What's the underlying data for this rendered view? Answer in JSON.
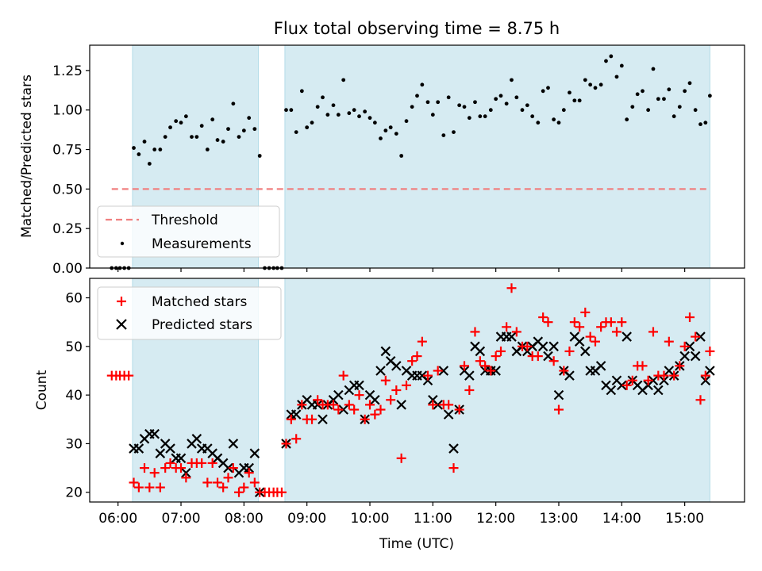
{
  "title": "Flux total observing time = 8.75 h",
  "colors": {
    "shade": "#add8e6",
    "threshold": "#f08080",
    "matched": "#ff0000",
    "predicted": "#000000",
    "measurement": "#000000"
  },
  "chart_data": [
    {
      "type": "scatter",
      "ylabel": "Matched/Predicted stars",
      "xlim": [
        5.55,
        15.95
      ],
      "ylim": [
        0,
        1.41
      ],
      "yticks": [
        0.0,
        0.25,
        0.5,
        0.75,
        1.0,
        1.25
      ],
      "ytick_labels": [
        "0.00",
        "0.25",
        "0.50",
        "0.75",
        "1.00",
        "1.25"
      ],
      "shaded_x_ranges": [
        [
          6.23,
          8.23
        ],
        [
          8.65,
          15.4
        ]
      ],
      "legend": {
        "placement": "lower left",
        "entries": [
          "Threshold",
          "Measurements"
        ]
      },
      "series": [
        {
          "name": "Threshold",
          "style": "dashed-line",
          "x": [
            5.9,
            15.4
          ],
          "y": [
            0.5,
            0.5
          ]
        },
        {
          "name": "Measurements",
          "style": "dot",
          "x": [
            5.9,
            5.97,
            6.03,
            6.1,
            6.17,
            6.25,
            6.33,
            6.42,
            6.5,
            6.58,
            6.67,
            6.75,
            6.83,
            6.92,
            7.0,
            7.08,
            7.17,
            7.25,
            7.33,
            7.42,
            7.5,
            7.58,
            7.67,
            7.75,
            7.83,
            7.92,
            8.0,
            8.08,
            8.17,
            8.25,
            8.33,
            8.4,
            8.47,
            8.53,
            8.6,
            8.67,
            8.75,
            8.83,
            8.92,
            9.0,
            9.08,
            9.17,
            9.25,
            9.33,
            9.42,
            9.5,
            9.58,
            9.67,
            9.75,
            9.83,
            9.92,
            10.0,
            10.08,
            10.17,
            10.25,
            10.33,
            10.42,
            10.5,
            10.58,
            10.67,
            10.75,
            10.83,
            10.92,
            11.0,
            11.08,
            11.17,
            11.25,
            11.33,
            11.42,
            11.5,
            11.58,
            11.67,
            11.75,
            11.83,
            11.92,
            12.0,
            12.08,
            12.17,
            12.25,
            12.33,
            12.42,
            12.5,
            12.58,
            12.67,
            12.75,
            12.83,
            12.92,
            13.0,
            13.08,
            13.17,
            13.25,
            13.33,
            13.42,
            13.5,
            13.58,
            13.67,
            13.75,
            13.83,
            13.92,
            14.0,
            14.08,
            14.17,
            14.25,
            14.33,
            14.42,
            14.5,
            14.58,
            14.67,
            14.75,
            14.83,
            14.92,
            15.0,
            15.08,
            15.17,
            15.25,
            15.33,
            15.4
          ],
          "y": [
            0.0,
            0.0,
            0.0,
            0.0,
            0.0,
            0.76,
            0.72,
            0.8,
            0.66,
            0.75,
            0.75,
            0.83,
            0.89,
            0.93,
            0.92,
            0.96,
            0.83,
            0.83,
            0.9,
            0.75,
            0.94,
            0.81,
            0.8,
            0.88,
            1.04,
            0.83,
            0.87,
            0.95,
            0.88,
            0.71,
            0.0,
            0.0,
            0.0,
            0.0,
            0.0,
            1.0,
            1.0,
            0.86,
            1.12,
            0.89,
            0.92,
            1.02,
            1.08,
            0.97,
            1.03,
            0.97,
            1.19,
            0.98,
            1.0,
            0.96,
            0.99,
            0.95,
            0.92,
            0.82,
            0.87,
            0.89,
            0.85,
            0.71,
            0.93,
            1.02,
            1.09,
            1.16,
            1.05,
            0.97,
            1.05,
            0.84,
            1.08,
            0.86,
            1.03,
            1.02,
            0.95,
            1.05,
            0.96,
            0.96,
            1.0,
            1.07,
            1.09,
            1.04,
            1.19,
            1.08,
            1.0,
            1.03,
            0.96,
            0.92,
            1.12,
            1.14,
            0.94,
            0.92,
            1.0,
            1.11,
            1.06,
            1.06,
            1.19,
            1.16,
            1.14,
            1.16,
            1.31,
            1.34,
            1.21,
            1.28,
            0.94,
            1.02,
            1.1,
            1.12,
            1.0,
            1.26,
            1.07,
            1.07,
            1.13,
            0.96,
            1.02,
            1.12,
            1.17,
            1.0,
            0.91,
            0.92,
            1.09
          ]
        }
      ]
    },
    {
      "type": "scatter",
      "ylabel": "Count",
      "xlabel": "Time (UTC)",
      "xlim": [
        5.55,
        15.95
      ],
      "ylim": [
        18,
        64
      ],
      "yticks": [
        20,
        30,
        40,
        50,
        60
      ],
      "ytick_labels": [
        "20",
        "30",
        "40",
        "50",
        "60"
      ],
      "xticks": [
        6,
        7,
        8,
        9,
        10,
        11,
        12,
        13,
        14,
        15
      ],
      "xtick_labels": [
        "06:00",
        "07:00",
        "08:00",
        "09:00",
        "10:00",
        "11:00",
        "12:00",
        "13:00",
        "14:00",
        "15:00"
      ],
      "shaded_x_ranges": [
        [
          6.23,
          8.23
        ],
        [
          8.65,
          15.4
        ]
      ],
      "legend": {
        "placement": "upper left",
        "entries": [
          "Matched stars",
          "Predicted stars"
        ]
      },
      "series": [
        {
          "name": "Matched stars",
          "marker": "+",
          "x": [
            5.9,
            5.97,
            6.03,
            6.1,
            6.17,
            6.25,
            6.33,
            6.42,
            6.5,
            6.58,
            6.67,
            6.75,
            6.83,
            6.92,
            7.0,
            7.08,
            7.17,
            7.25,
            7.33,
            7.42,
            7.5,
            7.58,
            7.67,
            7.75,
            7.83,
            7.92,
            8.0,
            8.08,
            8.17,
            8.25,
            8.33,
            8.4,
            8.47,
            8.53,
            8.6,
            8.67,
            8.75,
            8.83,
            8.92,
            9.0,
            9.08,
            9.17,
            9.25,
            9.33,
            9.42,
            9.5,
            9.58,
            9.67,
            9.75,
            9.83,
            9.92,
            10.0,
            10.08,
            10.17,
            10.25,
            10.33,
            10.42,
            10.5,
            10.58,
            10.67,
            10.75,
            10.83,
            10.92,
            11.0,
            11.08,
            11.17,
            11.25,
            11.33,
            11.42,
            11.5,
            11.58,
            11.67,
            11.75,
            11.83,
            11.92,
            12.0,
            12.08,
            12.17,
            12.25,
            12.33,
            12.42,
            12.5,
            12.58,
            12.67,
            12.75,
            12.83,
            12.92,
            13.0,
            13.08,
            13.17,
            13.25,
            13.33,
            13.42,
            13.5,
            13.58,
            13.67,
            13.75,
            13.83,
            13.92,
            14.0,
            14.08,
            14.17,
            14.25,
            14.33,
            14.42,
            14.5,
            14.58,
            14.67,
            14.75,
            14.83,
            14.92,
            15.0,
            15.08,
            15.17,
            15.25,
            15.33,
            15.4
          ],
          "y": [
            44,
            44,
            44,
            44,
            44,
            22,
            21,
            25,
            21,
            24,
            21,
            25,
            26,
            25,
            25,
            23,
            26,
            26,
            26,
            22,
            26,
            22,
            21,
            23,
            25,
            20,
            21,
            24,
            22,
            20,
            20,
            20,
            20,
            20,
            20,
            30,
            35,
            31,
            38,
            35,
            35,
            39,
            38,
            38,
            38,
            37,
            44,
            38,
            37,
            40,
            35,
            38,
            36,
            37,
            43,
            39,
            41,
            27,
            42,
            47,
            48,
            51,
            44,
            38,
            45,
            38,
            38,
            25,
            37,
            46,
            41,
            53,
            47,
            46,
            45,
            48,
            49,
            54,
            62,
            53,
            50,
            50,
            48,
            48,
            56,
            55,
            47,
            37,
            45,
            49,
            55,
            54,
            57,
            52,
            51,
            54,
            55,
            55,
            53,
            55,
            42,
            43,
            46,
            46,
            43,
            53,
            44,
            44,
            51,
            44,
            46,
            50,
            56,
            52,
            39,
            44,
            49
          ]
        },
        {
          "name": "Predicted stars",
          "marker": "x",
          "x": [
            6.25,
            6.33,
            6.42,
            6.5,
            6.58,
            6.67,
            6.75,
            6.83,
            6.92,
            7.0,
            7.08,
            7.17,
            7.25,
            7.33,
            7.42,
            7.5,
            7.58,
            7.67,
            7.75,
            7.83,
            7.92,
            8.0,
            8.08,
            8.17,
            8.25,
            8.67,
            8.75,
            8.83,
            8.92,
            9.0,
            9.08,
            9.17,
            9.25,
            9.33,
            9.42,
            9.5,
            9.58,
            9.67,
            9.75,
            9.83,
            9.92,
            10.0,
            10.08,
            10.17,
            10.25,
            10.33,
            10.42,
            10.5,
            10.58,
            10.67,
            10.75,
            10.83,
            10.92,
            11.0,
            11.08,
            11.17,
            11.25,
            11.33,
            11.42,
            11.5,
            11.58,
            11.67,
            11.75,
            11.83,
            11.92,
            12.0,
            12.08,
            12.17,
            12.25,
            12.33,
            12.42,
            12.5,
            12.58,
            12.67,
            12.75,
            12.83,
            12.92,
            13.0,
            13.08,
            13.17,
            13.25,
            13.33,
            13.42,
            13.5,
            13.58,
            13.67,
            13.75,
            13.83,
            13.92,
            14.0,
            14.08,
            14.17,
            14.25,
            14.33,
            14.42,
            14.5,
            14.58,
            14.67,
            14.75,
            14.83,
            14.92,
            15.0,
            15.08,
            15.17,
            15.25,
            15.33,
            15.4
          ],
          "y": [
            29,
            29,
            31,
            32,
            32,
            28,
            30,
            29,
            27,
            27,
            24,
            30,
            31,
            29,
            29,
            28,
            27,
            26,
            25,
            30,
            24,
            25,
            25,
            28,
            20,
            30,
            36,
            36,
            38,
            39,
            38,
            38,
            35,
            38,
            39,
            40,
            37,
            41,
            42,
            42,
            35,
            40,
            39,
            45,
            49,
            47,
            46,
            38,
            45,
            44,
            44,
            44,
            43,
            39,
            38,
            45,
            36,
            29,
            37,
            45,
            44,
            50,
            49,
            45,
            45,
            45,
            52,
            52,
            52,
            49,
            50,
            49,
            50,
            51,
            50,
            48,
            50,
            40,
            45,
            44,
            52,
            51,
            49,
            45,
            45,
            46,
            42,
            41,
            43,
            42,
            52,
            43,
            42,
            41,
            42,
            43,
            41,
            43,
            45,
            44,
            46,
            48,
            50,
            48,
            52,
            43,
            45
          ]
        }
      ]
    }
  ]
}
